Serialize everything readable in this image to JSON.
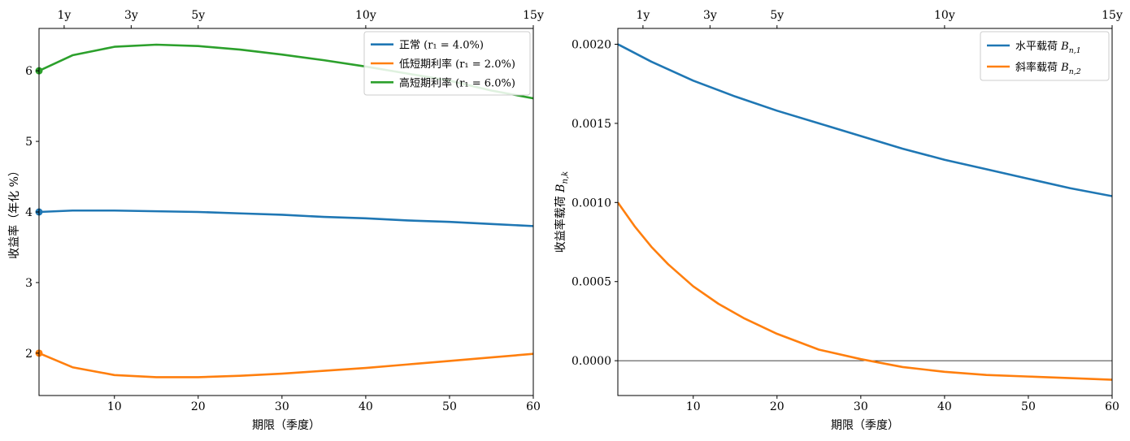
{
  "chart_data": [
    {
      "type": "line",
      "xlabel": "期限（季度）",
      "ylabel": "收益率（年化 %）",
      "xlim": [
        1,
        60
      ],
      "ylim": [
        1.4,
        6.6
      ],
      "xticks": [
        10,
        20,
        30,
        40,
        50,
        60
      ],
      "yticks": [
        2,
        3,
        4,
        5,
        6
      ],
      "top_axis": {
        "ticks": [
          4,
          12,
          20,
          40,
          60
        ],
        "labels": [
          "1y",
          "3y",
          "5y",
          "10y",
          "15y"
        ]
      },
      "legend_position": "top-right",
      "grid": false,
      "series": [
        {
          "name": "正常 (r₁ = 4.0%)",
          "color": "#1f77b4",
          "x": [
            1,
            5,
            10,
            15,
            20,
            25,
            30,
            35,
            40,
            45,
            50,
            55,
            60
          ],
          "y": [
            4.0,
            4.02,
            4.02,
            4.01,
            4.0,
            3.98,
            3.96,
            3.93,
            3.91,
            3.88,
            3.86,
            3.83,
            3.8
          ],
          "marker_at_start": true
        },
        {
          "name": "低短期利率 (r₁ = 2.0%)",
          "color": "#ff7f0e",
          "x": [
            1,
            5,
            10,
            15,
            20,
            25,
            30,
            35,
            40,
            45,
            50,
            55,
            60
          ],
          "y": [
            2.0,
            1.8,
            1.69,
            1.66,
            1.66,
            1.68,
            1.71,
            1.75,
            1.79,
            1.84,
            1.89,
            1.94,
            1.99
          ],
          "marker_at_start": true
        },
        {
          "name": "高短期利率 (r₁ = 6.0%)",
          "color": "#2ca02c",
          "x": [
            1,
            5,
            10,
            15,
            20,
            25,
            30,
            35,
            40,
            45,
            50,
            55,
            60
          ],
          "y": [
            6.0,
            6.22,
            6.34,
            6.37,
            6.35,
            6.3,
            6.23,
            6.15,
            6.06,
            5.96,
            5.86,
            5.72,
            5.61
          ],
          "marker_at_start": true
        }
      ]
    },
    {
      "type": "line",
      "xlabel": "期限（季度）",
      "ylabel": "收益率载荷 B_{n,k}",
      "xlim": [
        1,
        60
      ],
      "ylim": [
        -0.00022,
        0.0021
      ],
      "xticks": [
        10,
        20,
        30,
        40,
        50,
        60
      ],
      "yticks": [
        0.0,
        0.0005,
        0.001,
        0.0015,
        0.002
      ],
      "ytick_labels": [
        "0.0000",
        "0.0005",
        "0.0010",
        "0.0015",
        "0.0020"
      ],
      "top_axis": {
        "ticks": [
          4,
          12,
          20,
          40,
          60
        ],
        "labels": [
          "1y",
          "3y",
          "5y",
          "10y",
          "15y"
        ]
      },
      "hline": 0,
      "legend_position": "top-right",
      "grid": false,
      "series": [
        {
          "name": "水平载荷 B_{n,1}",
          "color": "#1f77b4",
          "x": [
            1,
            5,
            10,
            15,
            20,
            25,
            30,
            35,
            40,
            45,
            50,
            55,
            60
          ],
          "y": [
            0.002,
            0.00189,
            0.00177,
            0.00167,
            0.00158,
            0.0015,
            0.00142,
            0.00134,
            0.00127,
            0.00121,
            0.00115,
            0.00109,
            0.00104
          ]
        },
        {
          "name": "斜率载荷 B_{n,2}",
          "color": "#ff7f0e",
          "x": [
            1,
            3,
            5,
            7,
            10,
            13,
            16,
            20,
            25,
            30,
            35,
            40,
            45,
            50,
            55,
            60
          ],
          "y": [
            0.001,
            0.00085,
            0.00072,
            0.00061,
            0.00047,
            0.00036,
            0.00027,
            0.00017,
            7e-05,
            1e-05,
            -4e-05,
            -7e-05,
            -9e-05,
            -0.0001,
            -0.00011,
            -0.00012
          ]
        }
      ]
    }
  ]
}
